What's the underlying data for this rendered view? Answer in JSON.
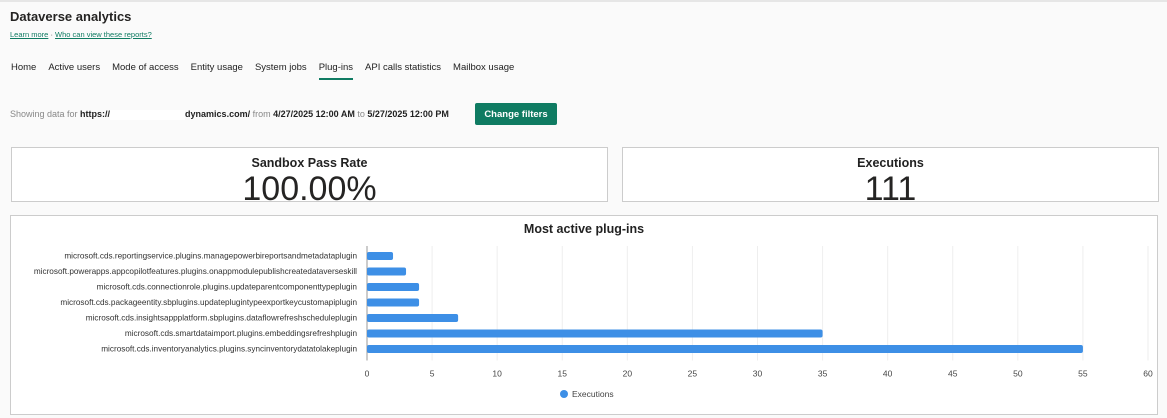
{
  "header": {
    "title": "Dataverse analytics",
    "learn_more": "Learn more",
    "separator": " · ",
    "who_can_view": "Who can view these reports?"
  },
  "tabs": [
    {
      "label": "Home"
    },
    {
      "label": "Active users"
    },
    {
      "label": "Mode of access"
    },
    {
      "label": "Entity usage"
    },
    {
      "label": "System jobs"
    },
    {
      "label": "Plug-ins",
      "active": true
    },
    {
      "label": "API calls statistics"
    },
    {
      "label": "Mailbox usage"
    }
  ],
  "filter": {
    "prefix": "Showing data for ",
    "url_start": "https://",
    "url_end": "dynamics.com/",
    "from_label": " from ",
    "from": "4/27/2025 12:00 AM",
    "to_label": " to ",
    "to": "5/27/2025 12:00 PM",
    "button": "Change filters"
  },
  "cards": [
    {
      "label": "Sandbox Pass Rate",
      "value": "100.00%"
    },
    {
      "label": "Executions",
      "value": "111"
    }
  ],
  "accent": "#0f7b62",
  "chart_data": {
    "type": "bar",
    "orientation": "horizontal",
    "title": "Most active plug-ins",
    "categories": [
      "microsoft.cds.reportingservice.plugins.managepowerbireportsandmetadataplugin",
      "microsoft.powerapps.appcopilotfeatures.plugins.onappmodulepublishcreatedataverseskill",
      "microsoft.cds.connectionrole.plugins.updateparentcomponenttypeplugin",
      "microsoft.cds.packageentity.sbplugins.updateplugintypeexportkeycustomapiplugin",
      "microsoft.cds.insightsappplatform.sbplugins.dataflowrefreshscheduleplugin",
      "microsoft.cds.smartdataimport.plugins.embeddingsrefreshplugin",
      "microsoft.cds.inventoryanalytics.plugins.syncinventorydatatolakeplugin"
    ],
    "series": [
      {
        "name": "Executions",
        "values": [
          2,
          3,
          4,
          4,
          7,
          35,
          55
        ],
        "color": "#3d8fe6"
      }
    ],
    "xlim": [
      0,
      60
    ],
    "xticks": [
      "0",
      "5",
      "10",
      "15",
      "20",
      "25",
      "30",
      "35",
      "40",
      "45",
      "50",
      "55",
      "60"
    ],
    "grid": true,
    "legend": "bottom-center"
  }
}
